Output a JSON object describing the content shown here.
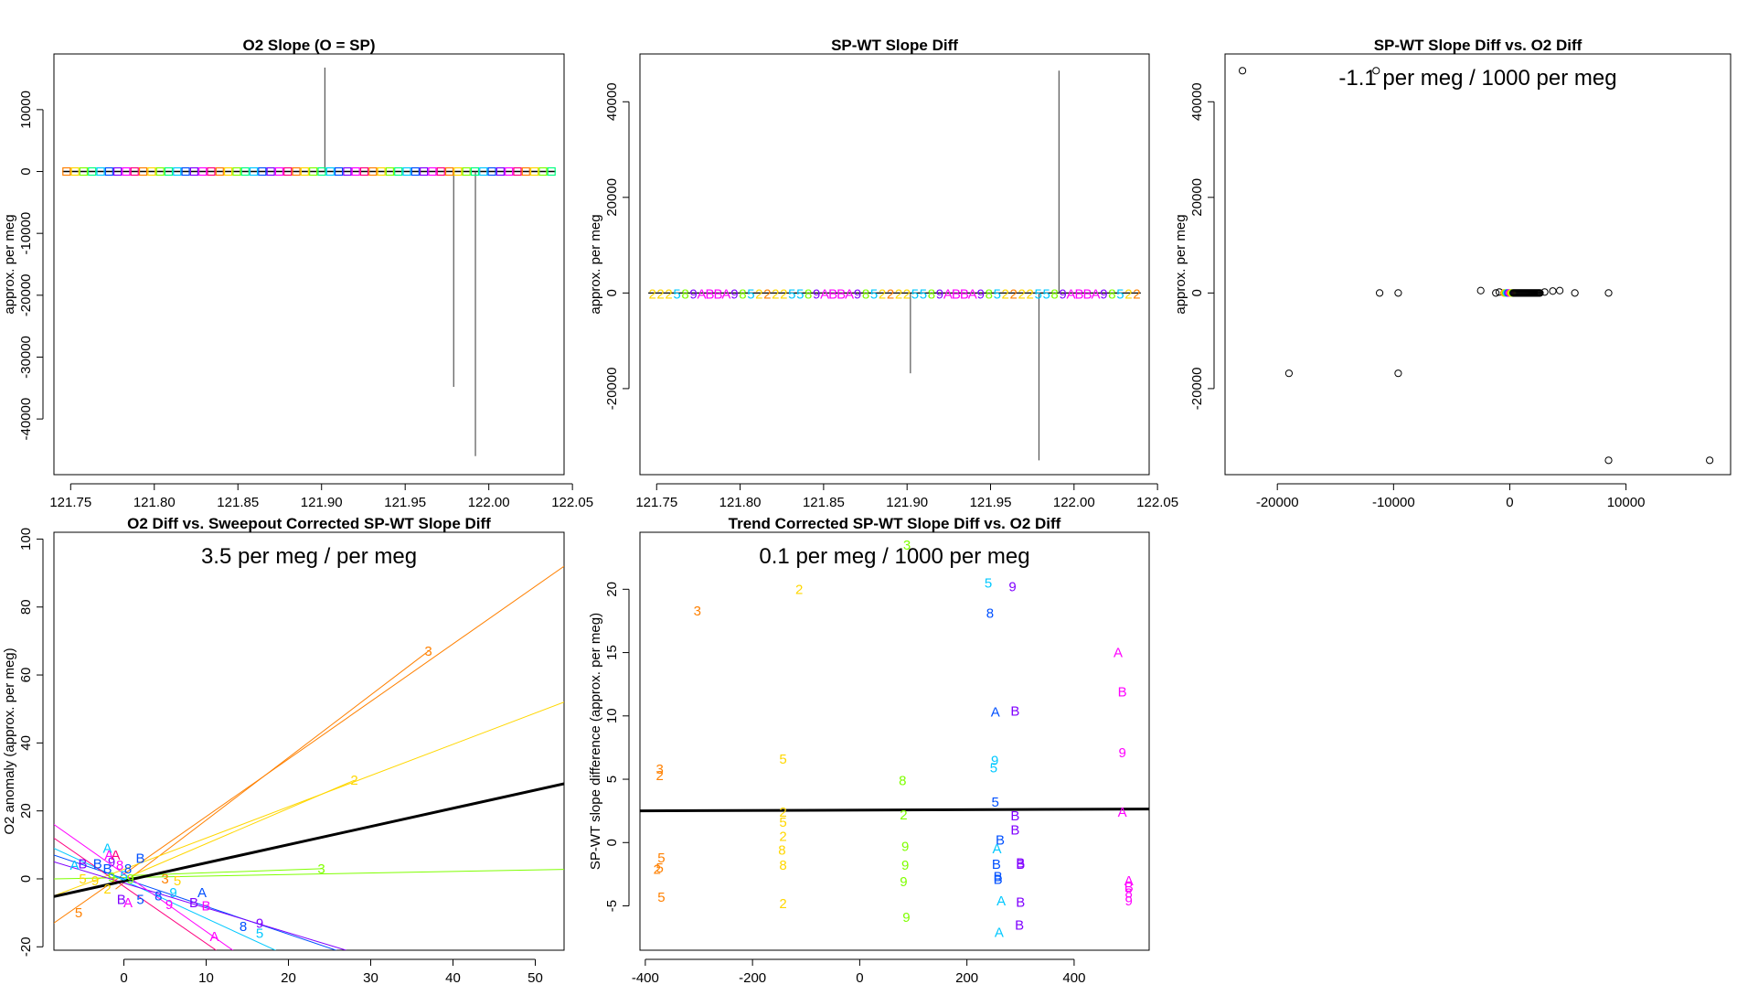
{
  "chart_data": [
    {
      "type": "line",
      "title": "O2 Slope (O = SP)",
      "xlabel": "",
      "ylabel": "approx. per meg",
      "xlim": [
        121.74,
        122.045
      ],
      "ylim": [
        -49000,
        19000
      ],
      "x_ticks": [
        121.75,
        121.8,
        121.85,
        121.9,
        121.95,
        122.0,
        122.05
      ],
      "x_tick_labels": [
        "121.75",
        "121.80",
        "121.85",
        "121.90",
        "121.95",
        "122.00",
        "122.05"
      ],
      "y_ticks": [
        -40000,
        -30000,
        -20000,
        -10000,
        0,
        10000
      ],
      "y_tick_labels": [
        "-40000",
        "-30000",
        "-20000",
        "-10000",
        "0",
        "10000"
      ],
      "series_x_start": 121.745,
      "series_x_end": 122.04,
      "marker_count": 58,
      "marker_colors": [
        "#ff8000",
        "#ffd700",
        "#7fff00",
        "#00ff7f",
        "#00c8ff",
        "#0050ff",
        "#8000ff",
        "#ff00ff",
        "#ff0080"
      ],
      "spikes": [
        {
          "x": 121.902,
          "y": 16800
        },
        {
          "x": 121.979,
          "y": -34800
        },
        {
          "x": 121.992,
          "y": -46000
        }
      ]
    },
    {
      "type": "line",
      "title": "SP-WT Slope Diff",
      "xlabel": "",
      "ylabel": "approx. per meg",
      "xlim": [
        121.74,
        122.045
      ],
      "ylim": [
        -38000,
        50000
      ],
      "x_ticks": [
        121.75,
        121.8,
        121.85,
        121.9,
        121.95,
        122.0,
        122.05
      ],
      "x_tick_labels": [
        "121.75",
        "121.80",
        "121.85",
        "121.90",
        "121.95",
        "122.00",
        "122.05"
      ],
      "y_ticks": [
        -20000,
        0,
        20000,
        40000
      ],
      "y_tick_labels": [
        "-20000",
        "0",
        "20000",
        "40000"
      ],
      "marker_string": "22258 9ABBA98522225589ABBA98522225589ABBA98522225589ABBA98522",
      "series_x_start": 121.745,
      "series_x_end": 122.04,
      "spikes": [
        {
          "x": 121.902,
          "y": -16800
        },
        {
          "x": 121.979,
          "y": -35000
        },
        {
          "x": 121.991,
          "y": 46500
        }
      ]
    },
    {
      "type": "scatter",
      "title": "SP-WT Slope Diff vs. O2 Diff",
      "xlabel": "",
      "ylabel": "approx. per meg",
      "annotation": "-1.1 per meg / 1000 per meg",
      "xlim": [
        -24500,
        19000
      ],
      "ylim": [
        -38000,
        50000
      ],
      "x_ticks": [
        -20000,
        -10000,
        0,
        10000
      ],
      "x_tick_labels": [
        "-20000",
        "-10000",
        "0",
        "10000"
      ],
      "y_ticks": [
        -20000,
        0,
        20000,
        40000
      ],
      "y_tick_labels": [
        "-20000",
        "0",
        "20000",
        "40000"
      ],
      "points": [
        {
          "x": -23000,
          "y": 46500
        },
        {
          "x": -11500,
          "y": 46500
        },
        {
          "x": -11200,
          "y": 0
        },
        {
          "x": -9600,
          "y": 0
        },
        {
          "x": -19000,
          "y": -16800
        },
        {
          "x": -9600,
          "y": -16800
        },
        {
          "x": 8500,
          "y": -35000
        },
        {
          "x": 17200,
          "y": -35000
        },
        {
          "x": 8500,
          "y": 0
        },
        {
          "x": 5600,
          "y": 0
        },
        {
          "x": 4300,
          "y": 500
        },
        {
          "x": 3700,
          "y": 400
        },
        {
          "x": 3000,
          "y": 200
        },
        {
          "x": -2500,
          "y": 500
        },
        {
          "x": -1200,
          "y": 0
        },
        {
          "x": -900,
          "y": 200
        }
      ],
      "dense_cluster": {
        "x_from": -500,
        "x_to": 2600,
        "y": 0
      }
    },
    {
      "type": "scatter",
      "title": "O2 Diff vs. Sweepout Corrected SP-WT Slope Diff",
      "xlabel": "",
      "ylabel": "O2 anomaly (approx. per meg)",
      "annotation": "3.5 per meg / per meg",
      "xlim": [
        -8.5,
        53.5
      ],
      "ylim": [
        -21,
        102
      ],
      "x_ticks": [
        0,
        10,
        20,
        30,
        40,
        50
      ],
      "x_tick_labels": [
        "0",
        "10",
        "20",
        "30",
        "40",
        "50"
      ],
      "y_ticks": [
        -20,
        0,
        20,
        40,
        60,
        80,
        100
      ],
      "y_tick_labels": [
        "-20",
        "0",
        "20",
        "40",
        "60",
        "80",
        "100"
      ],
      "fit_line": {
        "x1": -8.5,
        "y1": -5.2,
        "x2": 53.5,
        "y2": 28
      },
      "lines": [
        {
          "color": "#ff8000",
          "x1": -8.5,
          "y1": -13,
          "x2": 53.5,
          "y2": 92
        },
        {
          "color": "#ff8000",
          "x1": -1,
          "y1": -3,
          "x2": 37,
          "y2": 67
        },
        {
          "color": "#ffd700",
          "x1": -8.5,
          "y1": -5,
          "x2": 53.5,
          "y2": 52
        },
        {
          "color": "#ffd700",
          "x1": 1,
          "y1": 1,
          "x2": 28,
          "y2": 29
        },
        {
          "color": "#7fff00",
          "x1": -8.5,
          "y1": 0,
          "x2": 53.5,
          "y2": 2.8
        },
        {
          "color": "#7fff00",
          "x1": 1,
          "y1": 1,
          "x2": 24,
          "y2": 3
        },
        {
          "color": "#00c8ff",
          "x1": -8.5,
          "y1": 9,
          "x2": 22,
          "y2": -25
        },
        {
          "color": "#0050ff",
          "x1": -8.5,
          "y1": 7,
          "x2": 27,
          "y2": -22
        },
        {
          "color": "#8000ff",
          "x1": -8.5,
          "y1": 5,
          "x2": 27,
          "y2": -21
        },
        {
          "color": "#ff00ff",
          "x1": -8.5,
          "y1": 16,
          "x2": 15,
          "y2": -24
        },
        {
          "color": "#ff0080",
          "x1": -8.5,
          "y1": 12,
          "x2": 13,
          "y2": -24
        }
      ],
      "labels": [
        {
          "t": "3",
          "c": "#ff8000",
          "x": 37,
          "y": 67
        },
        {
          "t": "2",
          "c": "#ffd700",
          "x": 28,
          "y": 29
        },
        {
          "t": "3",
          "c": "#7fff00",
          "x": 24,
          "y": 3
        },
        {
          "t": "5",
          "c": "#ff8000",
          "x": -5.5,
          "y": -10
        },
        {
          "t": "A",
          "c": "#ff00ff",
          "x": 11,
          "y": -17
        },
        {
          "t": "5",
          "c": "#00c8ff",
          "x": 16.5,
          "y": -16
        },
        {
          "t": "9",
          "c": "#8000ff",
          "x": 16.5,
          "y": -13
        },
        {
          "t": "8",
          "c": "#0050ff",
          "x": 14.5,
          "y": -14
        },
        {
          "t": "B",
          "c": "#0050ff",
          "x": 2,
          "y": 6
        },
        {
          "t": "A",
          "c": "#00c8ff",
          "x": -2,
          "y": 9
        },
        {
          "t": "A",
          "c": "#0050ff",
          "x": 9.5,
          "y": -4
        },
        {
          "t": "B",
          "c": "#8000ff",
          "x": 8.5,
          "y": -7
        },
        {
          "t": "B",
          "c": "#ff00ff",
          "x": 10,
          "y": -8
        },
        {
          "t": "9",
          "c": "#ff00ff",
          "x": 5.5,
          "y": -7.5
        },
        {
          "t": "9",
          "c": "#00c8ff",
          "x": 6,
          "y": -4
        },
        {
          "t": "5",
          "c": "#ffd700",
          "x": 6.5,
          "y": -0.5
        },
        {
          "t": "5",
          "c": "#0050ff",
          "x": 2,
          "y": -6
        },
        {
          "t": "B",
          "c": "#8000ff",
          "x": -0.3,
          "y": -6
        },
        {
          "t": "A",
          "c": "#ff00ff",
          "x": 0.5,
          "y": -7
        },
        {
          "t": "8",
          "c": "#0050ff",
          "x": 4.2,
          "y": -5
        },
        {
          "t": "5",
          "c": "#ffd700",
          "x": -5,
          "y": 0
        },
        {
          "t": "9",
          "c": "#ffd700",
          "x": -3.5,
          "y": -0.5
        },
        {
          "t": "9",
          "c": "#7fff00",
          "x": -1.5,
          "y": 0.5
        },
        {
          "t": "A",
          "c": "#00c8ff",
          "x": -6,
          "y": 4
        },
        {
          "t": "B",
          "c": "#8000ff",
          "x": -5,
          "y": 4.5
        },
        {
          "t": "B",
          "c": "#0050ff",
          "x": -3.2,
          "y": 4.5
        },
        {
          "t": "A",
          "c": "#ff00ff",
          "x": -1.8,
          "y": 7
        },
        {
          "t": "9",
          "c": "#8000ff",
          "x": -1.5,
          "y": 5
        },
        {
          "t": "B",
          "c": "#0050ff",
          "x": -2,
          "y": 3
        },
        {
          "t": "8",
          "c": "#ff00ff",
          "x": -0.5,
          "y": 4
        },
        {
          "t": "A",
          "c": "#ff0080",
          "x": -1,
          "y": 7
        },
        {
          "t": "5",
          "c": "#00c8ff",
          "x": 0,
          "y": 1
        },
        {
          "t": "8",
          "c": "#0050ff",
          "x": 0.5,
          "y": 3
        },
        {
          "t": "9",
          "c": "#7fff00",
          "x": 0.8,
          "y": 0
        },
        {
          "t": "3",
          "c": "#ff8000",
          "x": 5,
          "y": 0
        },
        {
          "t": "2",
          "c": "#ffd700",
          "x": -2,
          "y": -3
        }
      ]
    },
    {
      "type": "scatter",
      "title": "Trend Corrected SP-WT Slope Diff vs. O2 Diff",
      "xlabel": "",
      "ylabel": "SP-WT slope difference (approx. per meg)",
      "annotation": "0.1 per meg / 1000 per meg",
      "xlim": [
        -410,
        540
      ],
      "ylim": [
        -8.5,
        24.5
      ],
      "x_ticks": [
        -400,
        -200,
        0,
        200,
        400
      ],
      "x_tick_labels": [
        "-400",
        "-200",
        "0",
        "200",
        "400"
      ],
      "y_ticks": [
        -5,
        0,
        5,
        10,
        15,
        20
      ],
      "y_tick_labels": [
        "-5",
        "0",
        "5",
        "10",
        "15",
        "20"
      ],
      "fit_line": {
        "x1": -410,
        "y1": 2.5,
        "x2": 540,
        "y2": 2.65
      },
      "labels": [
        {
          "t": "3",
          "c": "#ff8000",
          "x": -303,
          "y": 18.3
        },
        {
          "t": "3",
          "c": "#ff8000",
          "x": -373,
          "y": 5.8
        },
        {
          "t": "2",
          "c": "#ff8000",
          "x": -373,
          "y": 5.3
        },
        {
          "t": "5",
          "c": "#ff8000",
          "x": -370,
          "y": -1.2
        },
        {
          "t": "5",
          "c": "#ff8000",
          "x": -373,
          "y": -2
        },
        {
          "t": "2",
          "c": "#ff8000",
          "x": -378,
          "y": -2.1
        },
        {
          "t": "5",
          "c": "#ff8000",
          "x": -370,
          "y": -4.3
        },
        {
          "t": "2",
          "c": "#ffd700",
          "x": -113,
          "y": 20
        },
        {
          "t": "5",
          "c": "#ffd700",
          "x": -143,
          "y": 6.6
        },
        {
          "t": "2",
          "c": "#ffd700",
          "x": -143,
          "y": 2.4
        },
        {
          "t": "5",
          "c": "#ffd700",
          "x": -143,
          "y": 1.6
        },
        {
          "t": "2",
          "c": "#ffd700",
          "x": -143,
          "y": 0.5
        },
        {
          "t": "8",
          "c": "#ffd700",
          "x": -145,
          "y": -0.6
        },
        {
          "t": "8",
          "c": "#ffd700",
          "x": -143,
          "y": -1.8
        },
        {
          "t": "2",
          "c": "#ffd700",
          "x": -143,
          "y": -4.8
        },
        {
          "t": "3",
          "c": "#7fff00",
          "x": 88,
          "y": 23.5
        },
        {
          "t": "8",
          "c": "#7fff00",
          "x": 80,
          "y": 4.9
        },
        {
          "t": "2",
          "c": "#7fff00",
          "x": 82,
          "y": 2.2
        },
        {
          "t": "9",
          "c": "#7fff00",
          "x": 85,
          "y": -0.3
        },
        {
          "t": "9",
          "c": "#7fff00",
          "x": 85,
          "y": -1.8
        },
        {
          "t": "9",
          "c": "#7fff00",
          "x": 82,
          "y": -3.1
        },
        {
          "t": "9",
          "c": "#7fff00",
          "x": 87,
          "y": -5.9
        },
        {
          "t": "5",
          "c": "#00c8ff",
          "x": 240,
          "y": 20.5
        },
        {
          "t": "8",
          "c": "#0050ff",
          "x": 243,
          "y": 18.1
        },
        {
          "t": "A",
          "c": "#0050ff",
          "x": 253,
          "y": 10.3
        },
        {
          "t": "9",
          "c": "#00c8ff",
          "x": 252,
          "y": 6.5
        },
        {
          "t": "5",
          "c": "#00c8ff",
          "x": 250,
          "y": 5.9
        },
        {
          "t": "5",
          "c": "#0050ff",
          "x": 253,
          "y": 3.2
        },
        {
          "t": "B",
          "c": "#0050ff",
          "x": 262,
          "y": 0.2
        },
        {
          "t": "A",
          "c": "#00c8ff",
          "x": 256,
          "y": -0.5
        },
        {
          "t": "B",
          "c": "#0050ff",
          "x": 255,
          "y": -1.7
        },
        {
          "t": "B",
          "c": "#0050ff",
          "x": 258,
          "y": -2.7
        },
        {
          "t": "B",
          "c": "#0050ff",
          "x": 258,
          "y": -2.9
        },
        {
          "t": "A",
          "c": "#00c8ff",
          "x": 264,
          "y": -4.6
        },
        {
          "t": "A",
          "c": "#00c8ff",
          "x": 260,
          "y": -7.1
        },
        {
          "t": "9",
          "c": "#8000ff",
          "x": 285,
          "y": 20.2
        },
        {
          "t": "B",
          "c": "#8000ff",
          "x": 290,
          "y": 10.4
        },
        {
          "t": "B",
          "c": "#8000ff",
          "x": 290,
          "y": 2.1
        },
        {
          "t": "B",
          "c": "#8000ff",
          "x": 290,
          "y": 1.0
        },
        {
          "t": "B",
          "c": "#8000ff",
          "x": 300,
          "y": -1.6
        },
        {
          "t": "B",
          "c": "#8000ff",
          "x": 300,
          "y": -1.7
        },
        {
          "t": "B",
          "c": "#8000ff",
          "x": 300,
          "y": -4.7
        },
        {
          "t": "B",
          "c": "#8000ff",
          "x": 298,
          "y": -6.5
        },
        {
          "t": "A",
          "c": "#ff00ff",
          "x": 482,
          "y": 15
        },
        {
          "t": "B",
          "c": "#ff00ff",
          "x": 490,
          "y": 11.9
        },
        {
          "t": "9",
          "c": "#ff00ff",
          "x": 490,
          "y": 7.1
        },
        {
          "t": "A",
          "c": "#ff00ff",
          "x": 490,
          "y": 2.4
        },
        {
          "t": "A",
          "c": "#ff00ff",
          "x": 502,
          "y": -3
        },
        {
          "t": "B",
          "c": "#ff00ff",
          "x": 502,
          "y": -3.5
        },
        {
          "t": "8",
          "c": "#ff00ff",
          "x": 502,
          "y": -4
        },
        {
          "t": "9",
          "c": "#ff00ff",
          "x": 502,
          "y": -4.6
        }
      ]
    }
  ]
}
